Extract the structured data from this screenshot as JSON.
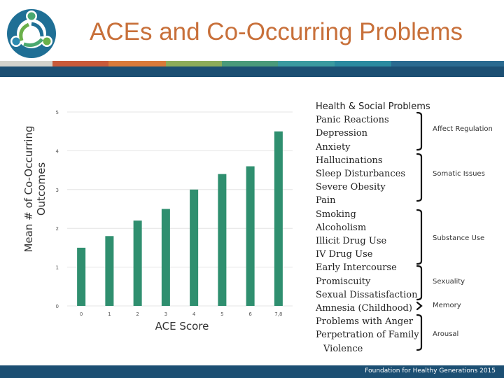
{
  "title": "ACEs and Co-Occurring Problems",
  "colors": {
    "title": "#c8703a",
    "bar": "#2f8f6f",
    "band": "#1c4f73"
  },
  "stripe_colors": [
    "#d2d2cc",
    "#c85a3a",
    "#d87a3a",
    "#8cac5a",
    "#4a9a7a",
    "#3a9aa0",
    "#2a8aa0",
    "#2a6a90"
  ],
  "chart_data": {
    "type": "bar",
    "categories": [
      "0",
      "1",
      "2",
      "3",
      "4",
      "5",
      "6",
      "7,8"
    ],
    "values": [
      1.5,
      1.8,
      2.2,
      2.5,
      3.0,
      3.4,
      3.6,
      4.5
    ],
    "ylim": [
      0,
      5
    ],
    "yticks": [
      "0",
      "1",
      "2",
      "3",
      "4",
      "5"
    ],
    "xlabel": "ACE Score",
    "ylabel": "Mean # of Co-Occurring Outcomes",
    "grid": false
  },
  "problems": {
    "header": "Health & Social Problems",
    "items": [
      "Panic Reactions",
      "Depression",
      "Anxiety",
      "Hallucinations",
      "Sleep Disturbances",
      "Severe Obesity",
      "Pain",
      "Smoking",
      "Alcoholism",
      "Illicit Drug Use",
      "IV Drug Use",
      "Early Intercourse",
      "Promiscuity",
      "Sexual Dissatisfaction",
      "Amnesia (Childhood)",
      "Problems with Anger",
      "Perpetration of Family",
      "Violence"
    ]
  },
  "categories": [
    "Affect Regulation",
    "Somatic Issues",
    "Substance Use",
    "Sexuality",
    "Memory",
    "Arousal"
  ],
  "footer": "Foundation for Healthy Generations 2015"
}
